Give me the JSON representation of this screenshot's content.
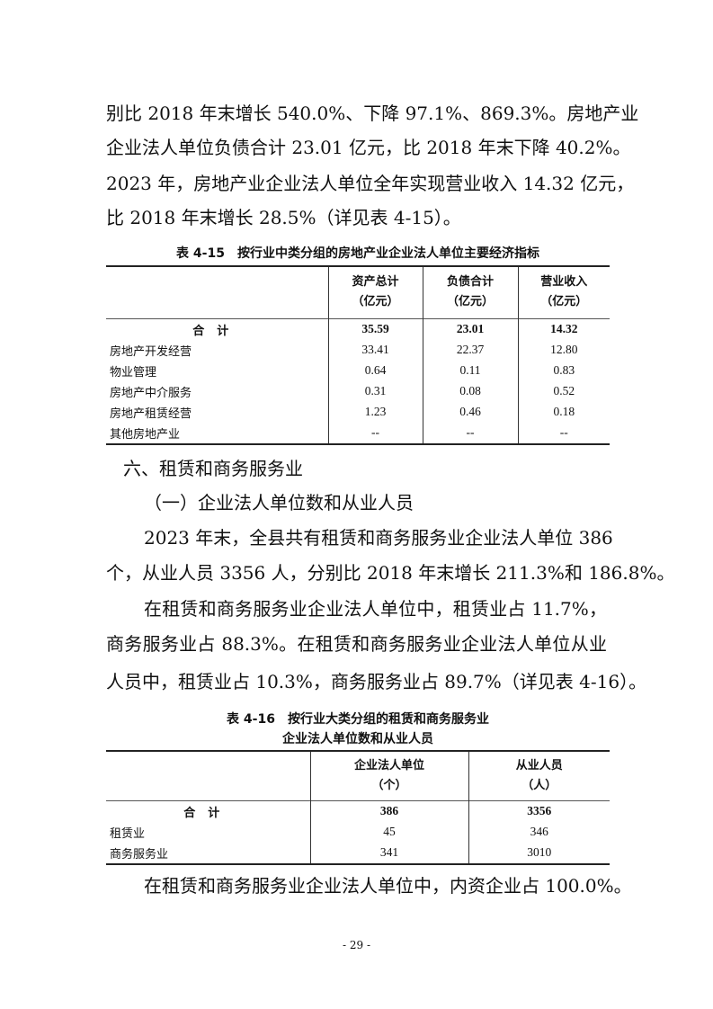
{
  "para1": [
    "别比 2018 年末增长 540.0%、下降 97.1%、869.3%。房地产业",
    "企业法人单位负债合计 23.01 亿元，比 2018 年末下降 40.2%。",
    "2023 年，房地产业企业法人单位全年实现营业收入 14.32 亿元，",
    "比 2018 年末增长 28.5%（详见表 4-15）。"
  ],
  "table1": {
    "caption": "表 4-15　按行业中类分组的房地产业企业法人单位主要经济指标",
    "headers": [
      {
        "name": "资产总计",
        "unit": "（亿元）"
      },
      {
        "name": "负债合计",
        "unit": "（亿元）"
      },
      {
        "name": "营业收入",
        "unit": "（亿元）"
      }
    ],
    "rows": [
      {
        "label": "合计",
        "values": [
          "35.59",
          "23.01",
          "14.32"
        ]
      },
      {
        "label": "房地产开发经营",
        "values": [
          "33.41",
          "22.37",
          "12.80"
        ]
      },
      {
        "label": "物业管理",
        "values": [
          "0.64",
          "0.11",
          "0.83"
        ]
      },
      {
        "label": "房地产中介服务",
        "values": [
          "0.31",
          "0.08",
          "0.52"
        ]
      },
      {
        "label": "房地产租赁经营",
        "values": [
          "1.23",
          "0.46",
          "0.18"
        ]
      },
      {
        "label": "其他房地产业",
        "values": [
          "--",
          "--",
          "--"
        ]
      }
    ]
  },
  "section_heading": "六、租赁和商务服务业",
  "sub_heading": "（一）企业法人单位数和从业人员",
  "para2": [
    "2023 年末，全县共有租赁和商务服务业企业法人单位 386",
    "个，从业人员 3356 人，分别比 2018 年末增长 211.3%和 186.8%。"
  ],
  "para3": [
    "在租赁和商务服务业企业法人单位中，租赁业占 11.7%，",
    "商务服务业占 88.3%。在租赁和商务服务业企业法人单位从业",
    "人员中，租赁业占 10.3%，商务服务业占 89.7%（详见表 4-16）。"
  ],
  "table2": {
    "caption_line1": "表 4-16　按行业大类分组的租赁和商务服务业",
    "caption_line2": "企业法人单位数和从业人员",
    "headers": [
      {
        "name": "企业法人单位",
        "unit": "（个）"
      },
      {
        "name": "从业人员",
        "unit": "（人）"
      }
    ],
    "rows": [
      {
        "label": "合计",
        "values": [
          "386",
          "3356"
        ]
      },
      {
        "label": "租赁业",
        "values": [
          "45",
          "346"
        ]
      },
      {
        "label": "商务服务业",
        "values": [
          "341",
          "3010"
        ]
      }
    ]
  },
  "para4": "在租赁和商务服务业企业法人单位中，内资企业占 100.0%。",
  "page_number": "- 29 -"
}
